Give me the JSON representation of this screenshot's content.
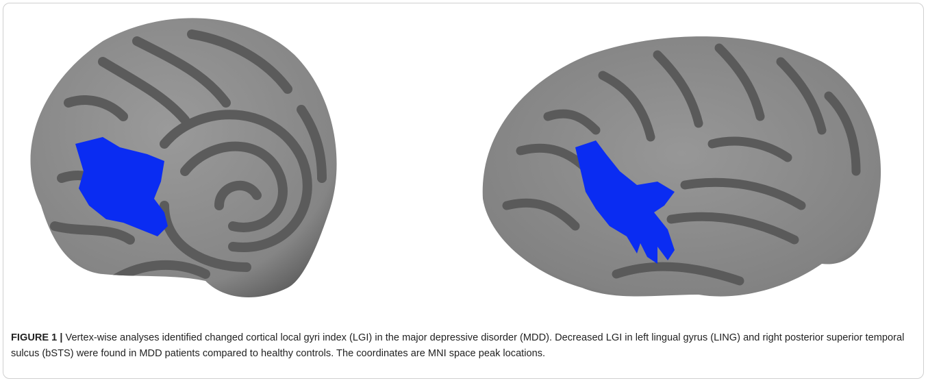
{
  "figure": {
    "label": "FIGURE 1 |",
    "caption": "Vertex-wise analyses identified changed cortical local gyri index (LGI) in the major depressive disorder (MDD). Decreased LGI in left lingual gyrus (LING) and right posterior superior temporal sulcus (bSTS) were found in MDD patients compared to healthy controls. The coordinates are MNI space peak locations."
  }
}
